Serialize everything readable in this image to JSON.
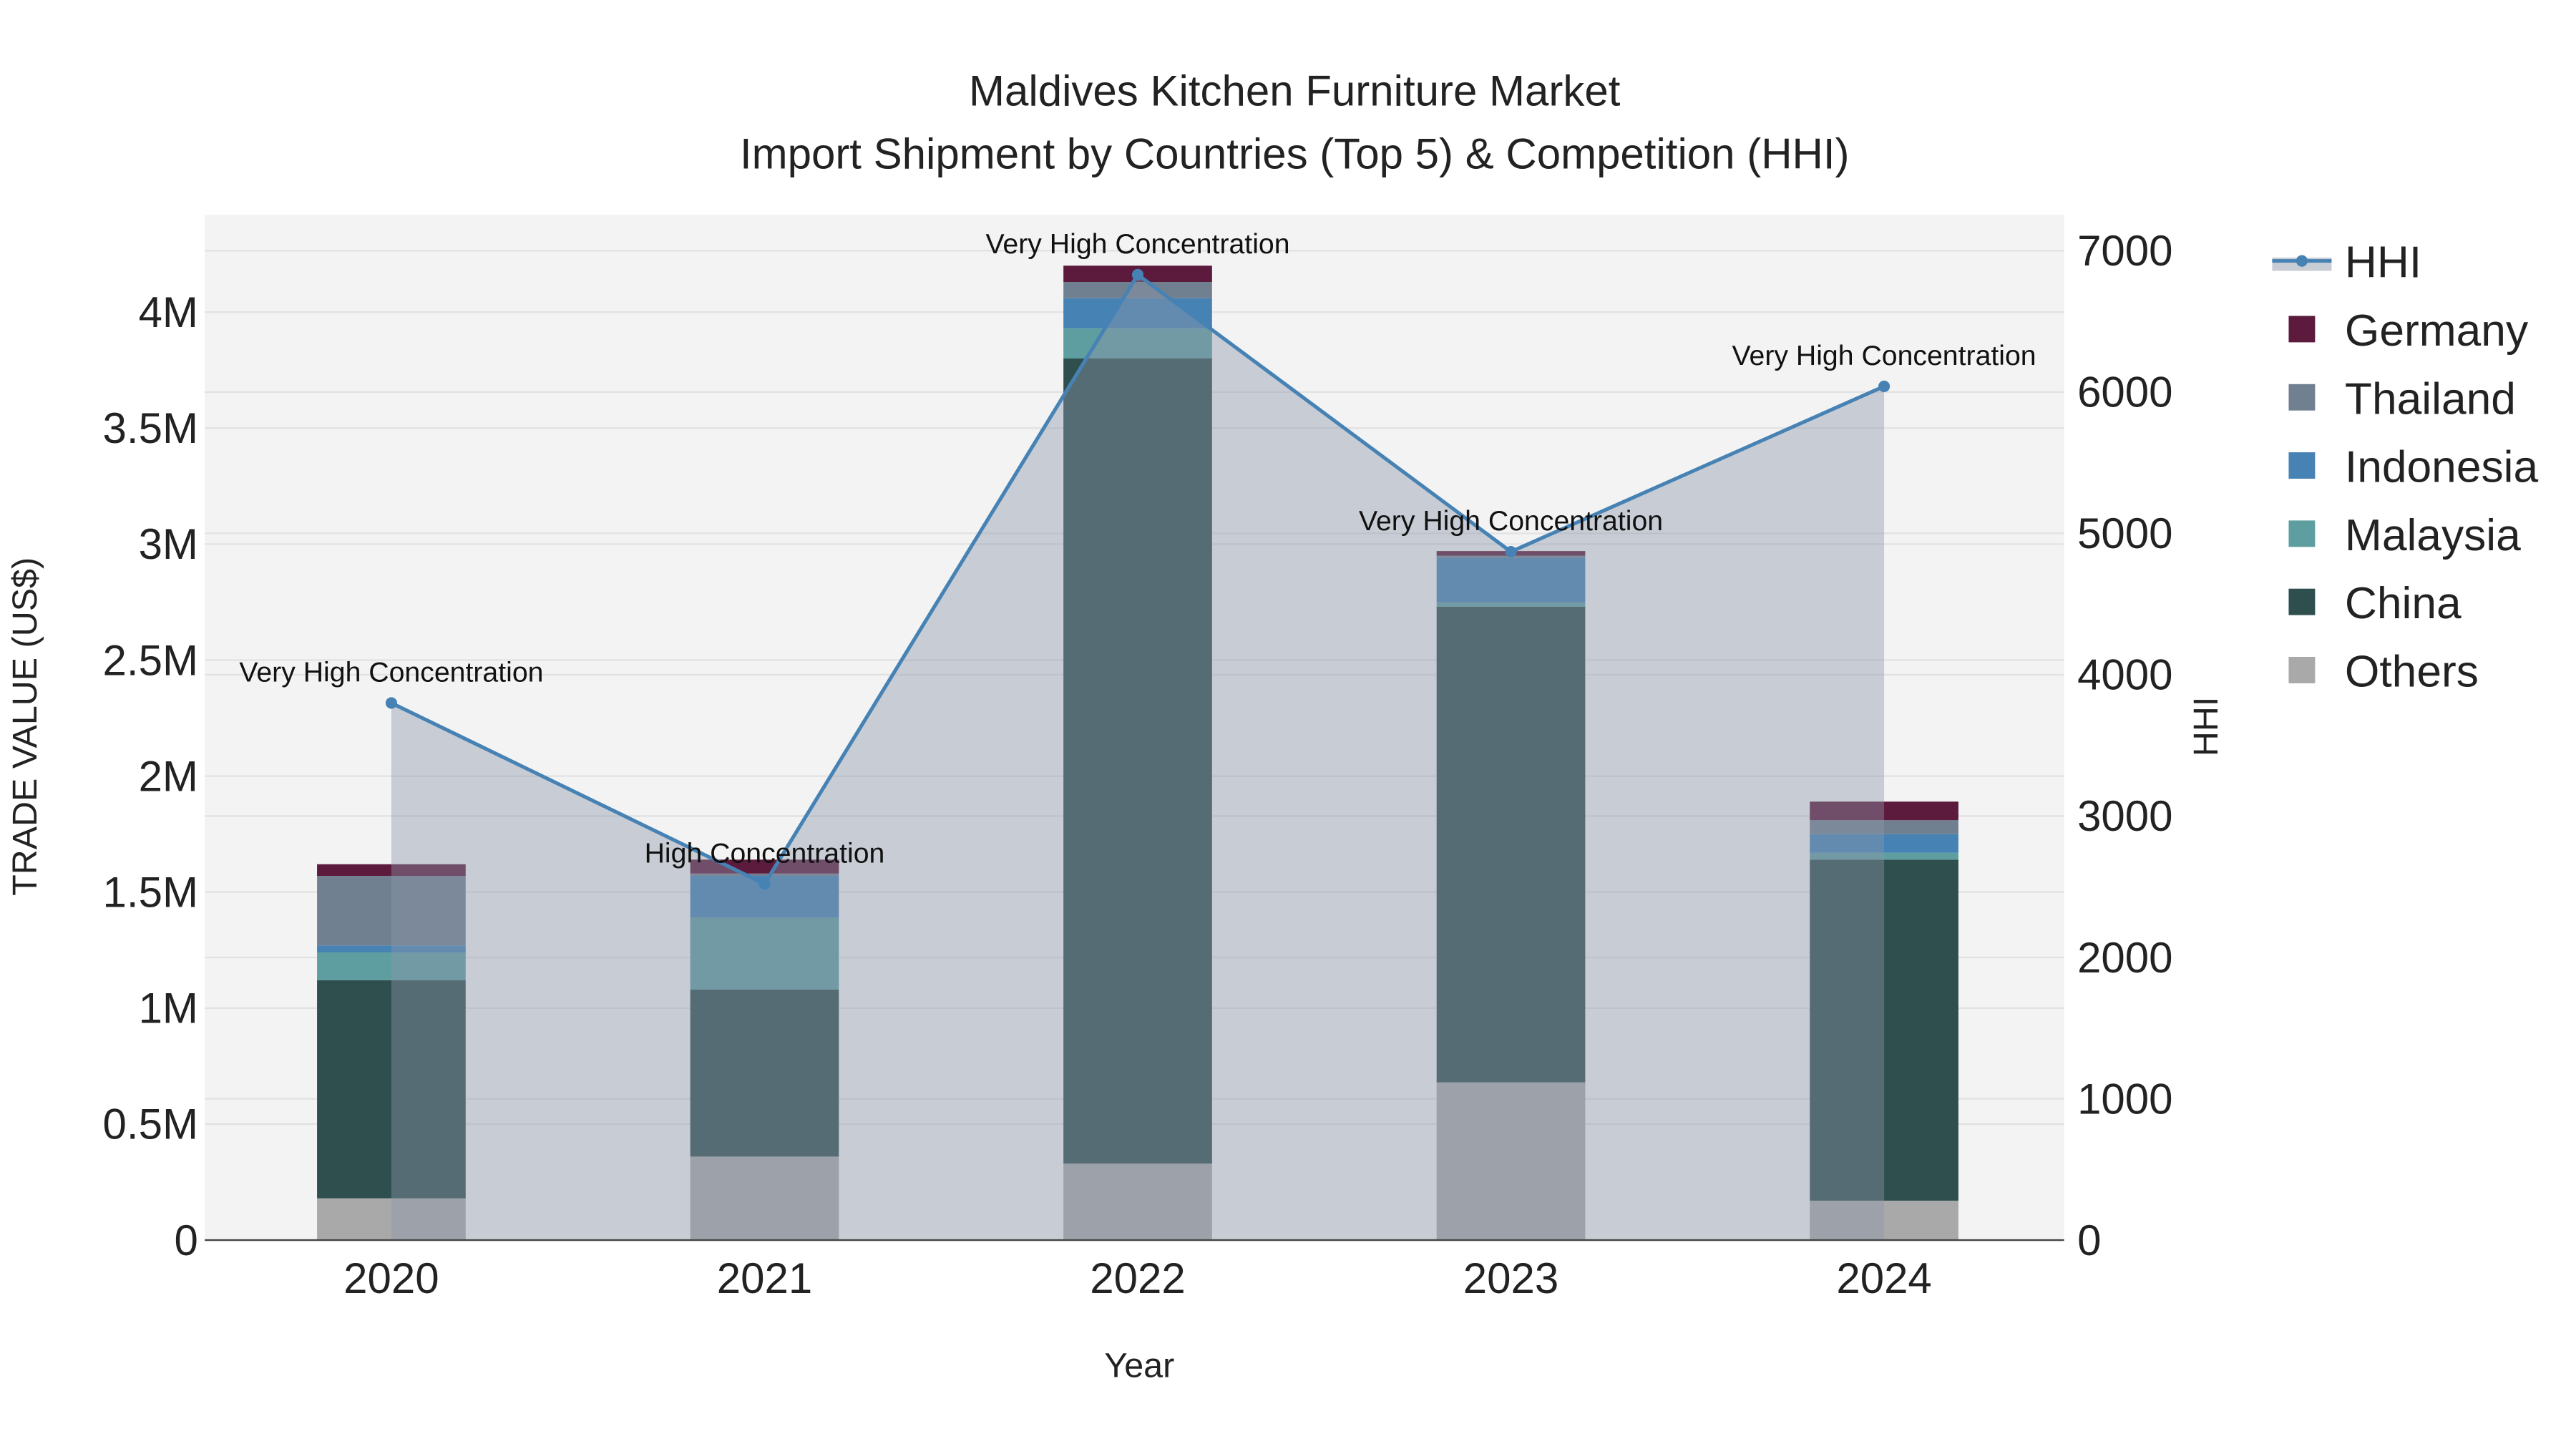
{
  "chart_data": {
    "type": "bar",
    "title": "Maldives Kitchen Furniture Market",
    "subtitle": "Import Shipment by Countries (Top 5) & Competition (HHI)",
    "xlabel": "Year",
    "ylabel": "TRADE VALUE (US$)",
    "y2label": "HHI",
    "categories": [
      "2020",
      "2021",
      "2022",
      "2023",
      "2024"
    ],
    "ylim": [
      0,
      4400000
    ],
    "y2lim": [
      0,
      7250
    ],
    "yticks": [
      0,
      500000,
      1000000,
      1500000,
      2000000,
      2500000,
      3000000,
      3500000,
      4000000
    ],
    "ytick_labels": [
      "0",
      "0.5M",
      "1M",
      "1.5M",
      "2M",
      "2.5M",
      "3M",
      "3.5M",
      "4M"
    ],
    "y2ticks": [
      0,
      1000,
      2000,
      3000,
      4000,
      5000,
      6000,
      7000
    ],
    "y2tick_labels": [
      "0",
      "1000",
      "2000",
      "3000",
      "4000",
      "5000",
      "6000",
      "7000"
    ],
    "series": [
      {
        "name": "Others",
        "color": "#a9a9a9",
        "values": [
          180000,
          360000,
          330000,
          680000,
          170000
        ]
      },
      {
        "name": "China",
        "color": "#2f4f4f",
        "values": [
          940000,
          720000,
          3470000,
          2050000,
          1470000
        ]
      },
      {
        "name": "Malaysia",
        "color": "#5f9ea0",
        "values": [
          120000,
          310000,
          130000,
          20000,
          30000
        ]
      },
      {
        "name": "Indonesia",
        "color": "#4682b4",
        "values": [
          30000,
          180000,
          130000,
          190000,
          80000
        ]
      },
      {
        "name": "Thailand",
        "color": "#708090",
        "values": [
          300000,
          10000,
          70000,
          10000,
          60000
        ]
      },
      {
        "name": "Germany",
        "color": "#5c1a3c",
        "values": [
          50000,
          60000,
          70000,
          20000,
          80000
        ]
      }
    ],
    "hhi": {
      "name": "HHI",
      "color": "#4682b4",
      "values": [
        3800,
        2520,
        6830,
        4870,
        6040
      ],
      "annotations": [
        "Very High Concentration",
        "High Concentration",
        "Very High Concentration",
        "Very High Concentration",
        "Very High Concentration"
      ]
    },
    "legend": [
      "HHI",
      "Germany",
      "Thailand",
      "Indonesia",
      "Malaysia",
      "China",
      "Others"
    ],
    "legend_position": "right",
    "grid": true
  }
}
